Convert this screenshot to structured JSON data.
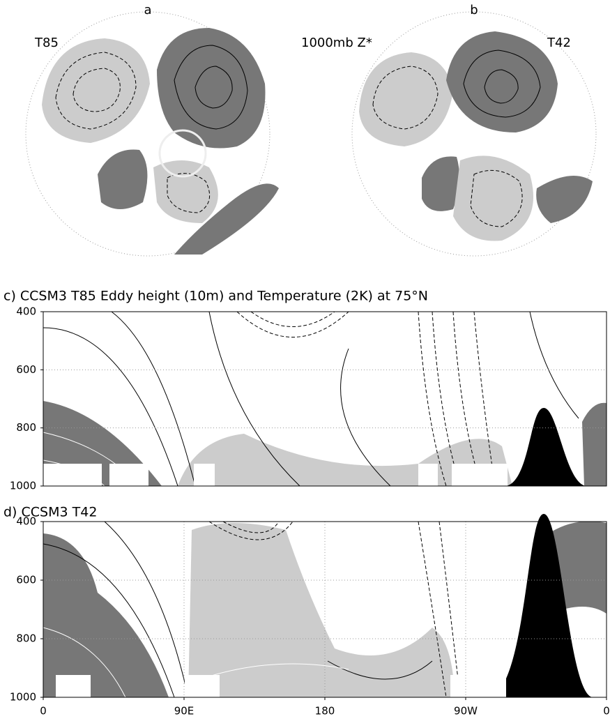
{
  "chart_data": [
    {
      "type": "map",
      "label": "a",
      "left_label": "T85",
      "center_label": "1000mb Z*"
    },
    {
      "type": "map",
      "label": "b",
      "right_label": "T42"
    },
    {
      "type": "contour",
      "title": "c) CCSM3 T85 Eddy height (10m) and Temperature (2K) at 75°N",
      "xlim": [
        0,
        360
      ],
      "ylim": [
        1000,
        400
      ],
      "yticks": [
        400,
        600,
        800,
        1000
      ],
      "grid": true
    },
    {
      "type": "contour",
      "title": "d) CCSM3 T42",
      "xlim": [
        0,
        360
      ],
      "ylim": [
        1000,
        400
      ],
      "yticks": [
        400,
        600,
        800,
        1000
      ],
      "xticks": [
        0,
        {
          "value": 90,
          "label": "90E"
        },
        180,
        {
          "value": 270,
          "label": "90W"
        },
        {
          "value": 360,
          "label": "0"
        }
      ],
      "grid": true
    }
  ]
}
